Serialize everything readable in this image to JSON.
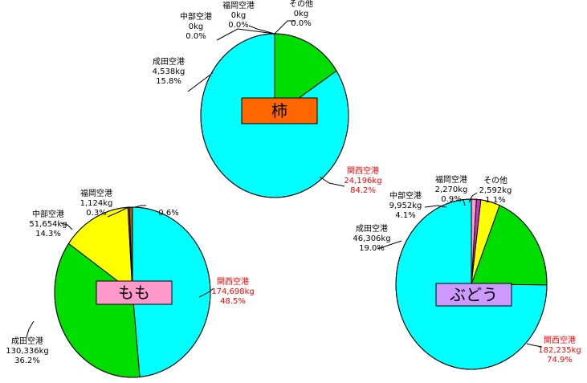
{
  "chart_data": [
    {
      "type": "pie",
      "title": "柿",
      "title_color": "#ff6600",
      "slices": [
        {
          "name": "関西空港",
          "weight": "24,196kg",
          "percent": "84.2%",
          "value": 24196,
          "color": "#00ffff",
          "text_color": "#ff0000"
        },
        {
          "name": "成田空港",
          "weight": "4,538kg",
          "percent": "15.8%",
          "value": 4538,
          "color": "#00dd00",
          "text_color": "#000000"
        },
        {
          "name": "中部空港",
          "weight": "0kg",
          "percent": "0.0%",
          "value": 0,
          "color": "#ffff00",
          "text_color": "#000000"
        },
        {
          "name": "福岡空港",
          "weight": "0kg",
          "percent": "0.0%",
          "value": 0,
          "color": "#cc33cc",
          "text_color": "#000000"
        },
        {
          "name": "その他",
          "weight": "0kg",
          "percent": "0.0%",
          "value": 0,
          "color": "#ff99cc",
          "text_color": "#000000"
        }
      ]
    },
    {
      "type": "pie",
      "title": "もも",
      "title_color": "#ff99cc",
      "slices": [
        {
          "name": "関西空港",
          "weight": "174,698kg",
          "percent": "48.5%",
          "value": 174698,
          "color": "#00ffff",
          "text_color": "#ff0000"
        },
        {
          "name": "成田空港",
          "weight": "130,336kg",
          "percent": "36.2%",
          "value": 130336,
          "color": "#00dd00",
          "text_color": "#000000"
        },
        {
          "name": "中部空港",
          "weight": "51,654kg",
          "percent": "14.3%",
          "value": 51654,
          "color": "#ffff00",
          "text_color": "#000000"
        },
        {
          "name": "福岡空港",
          "weight": "1,124kg",
          "percent": "0.3%",
          "value": 1124,
          "color": "#cc33cc",
          "text_color": "#000000"
        },
        {
          "name": "",
          "weight": "",
          "percent": "0.6%",
          "value": 2300,
          "color": "#996600",
          "text_color": "#000000"
        }
      ]
    },
    {
      "type": "pie",
      "title": "ぶどう",
      "title_color": "#cc99ff",
      "slices": [
        {
          "name": "関西空港",
          "weight": "182,235kg",
          "percent": "74.9%",
          "value": 182235,
          "color": "#00ffff",
          "text_color": "#ff0000"
        },
        {
          "name": "成田空港",
          "weight": "46,306kg",
          "percent": "19.0%",
          "value": 46306,
          "color": "#00dd00",
          "text_color": "#000000"
        },
        {
          "name": "中部空港",
          "weight": "9,952kg",
          "percent": "4.1%",
          "value": 9952,
          "color": "#ffff00",
          "text_color": "#000000"
        },
        {
          "name": "福岡空港",
          "weight": "2,270kg",
          "percent": "0.9%",
          "value": 2270,
          "color": "#cc33cc",
          "text_color": "#000000"
        },
        {
          "name": "その他",
          "weight": "2,592kg",
          "percent": "1.1%",
          "value": 2592,
          "color": "#ff99cc",
          "text_color": "#000000"
        }
      ]
    }
  ]
}
